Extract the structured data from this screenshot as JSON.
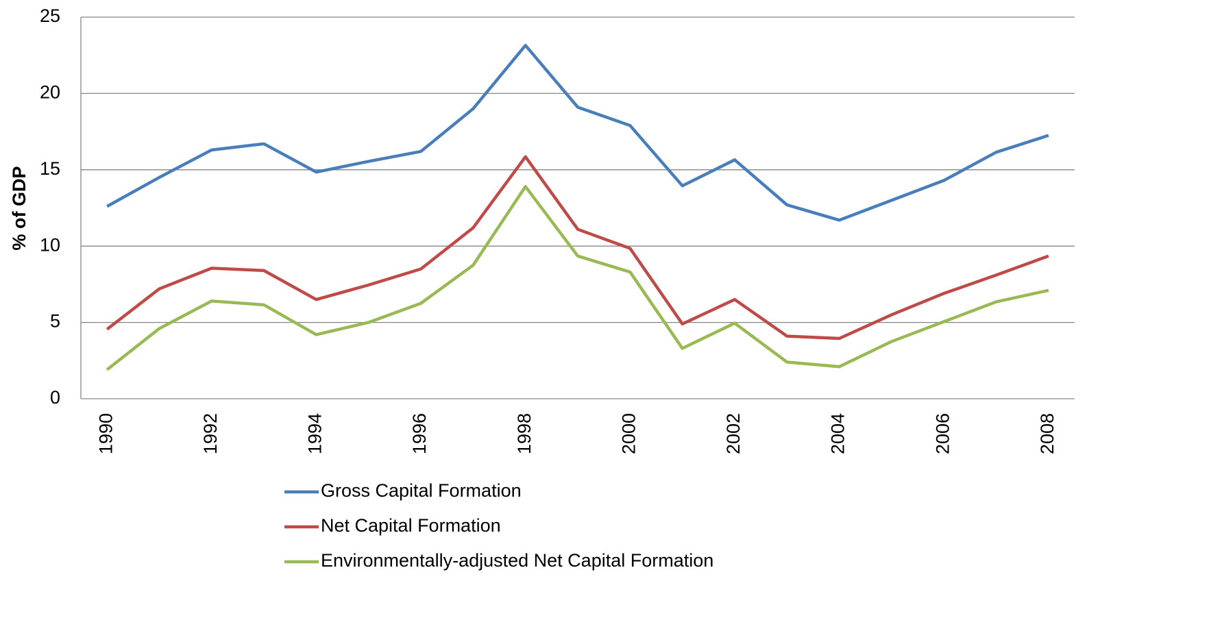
{
  "chart_data": {
    "type": "line",
    "ylabel": "% of GDP",
    "categories": [
      "1990",
      null,
      "1992",
      null,
      "1994",
      null,
      "1996",
      null,
      "1998",
      null,
      "2000",
      null,
      "2002",
      null,
      "2004",
      null,
      "2006",
      null,
      "2008"
    ],
    "series": [
      {
        "name": "Gross Capital Formation",
        "color": "#4a7ebb",
        "values": [
          12.6,
          14.5,
          16.3,
          16.7,
          14.85,
          15.55,
          16.2,
          19.0,
          23.15,
          19.1,
          17.9,
          13.95,
          15.65,
          12.7,
          11.7,
          13.0,
          14.3,
          16.15,
          17.25
        ]
      },
      {
        "name": "Net Capital Formation",
        "color": "#be4b48",
        "values": [
          4.55,
          7.2,
          8.55,
          8.4,
          6.5,
          7.45,
          8.5,
          11.2,
          15.85,
          11.1,
          9.85,
          4.9,
          6.5,
          4.1,
          3.95,
          5.5,
          6.9,
          8.1,
          9.35
        ]
      },
      {
        "name": "Environmentally-adjusted Net Capital Formation",
        "color": "#98b954",
        "values": [
          1.9,
          4.6,
          6.4,
          6.15,
          4.2,
          5.0,
          6.25,
          8.75,
          13.9,
          9.35,
          8.3,
          3.3,
          4.95,
          2.4,
          2.1,
          3.75,
          5.05,
          6.35,
          7.1
        ]
      }
    ],
    "ylim": [
      0,
      25
    ],
    "yticks": [
      0,
      5,
      10,
      15,
      20,
      25
    ],
    "grid": true,
    "legend": "bottom"
  }
}
